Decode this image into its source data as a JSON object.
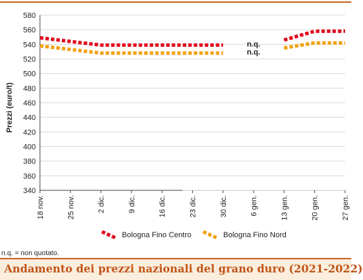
{
  "title": "Andamento dei prezzi nazionali del grano duro (2021-2022)",
  "footnote": "n.q. = non quotato.",
  "colors": {
    "accent": "#c8641e",
    "title_text": "#c0551a",
    "title_bg": "#fbeedd"
  },
  "chart_data": {
    "type": "line",
    "categories": [
      "18 nov.",
      "25 nov.",
      "2 dic.",
      "9 dic.",
      "16 dic.",
      "23 dic.",
      "30 dic.",
      "6 gen.",
      "13 gen.",
      "20 gen.",
      "27 gen."
    ],
    "ylabel": "Prezzi (euro/t)",
    "xlabel": "",
    "ylim": [
      340,
      580
    ],
    "yticks": [
      340,
      360,
      380,
      400,
      420,
      440,
      460,
      480,
      500,
      520,
      540,
      560,
      580
    ],
    "grid": "horizontal",
    "legend_position": "bottom",
    "series": [
      {
        "name": "Bologna Fino Centro",
        "color": "#e2001a",
        "values": [
          549,
          544,
          539,
          539,
          539,
          539,
          539,
          null,
          546,
          558,
          558
        ]
      },
      {
        "name": "Bologna Fino Nord",
        "color": "#f2a10c",
        "values": [
          538,
          533,
          528,
          528,
          528,
          528,
          528,
          null,
          535,
          542,
          542
        ]
      }
    ],
    "annotations": [
      {
        "text": "n.q.",
        "x": "6 gen.",
        "y": 539
      },
      {
        "text": "n.q.",
        "x": "6 gen.",
        "y": 528
      }
    ]
  }
}
